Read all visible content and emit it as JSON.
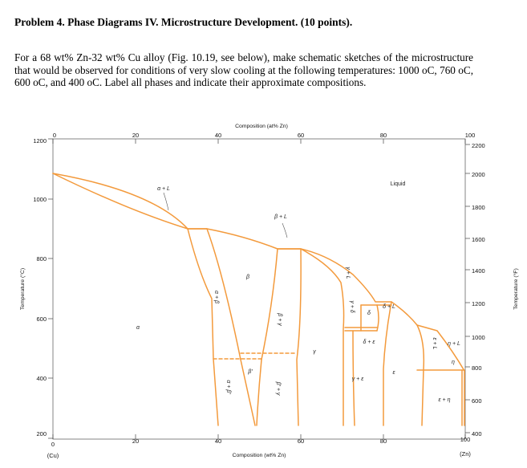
{
  "problem": {
    "title": "Problem 4. Phase Diagrams IV. Microstructure Development. (10 points).",
    "text": "For a 68 wt% Zn-32 wt% Cu alloy (Fig. 10.19, see below), make schematic sketches of the microstructure that would be observed for conditions of very slow cooling at the following temperatures: 1000 oC, 760 oC, 600 oC, and 400 oC. Label all phases and indicate their approximate compositions."
  },
  "chart_data": {
    "type": "phase-diagram",
    "x_label": "Composition (wt% Zn)",
    "top_label": "Composition (at% Zn)",
    "y_label_left": "Temperature (°C)",
    "y_label_right": "Temperature (°F)",
    "x_ticks": [
      "0",
      "20",
      "40",
      "60",
      "80",
      "100"
    ],
    "x_range": [
      0,
      100
    ],
    "x_end_labels": {
      "left": "(Cu)",
      "right": "(Zn)"
    },
    "top_ticks": [
      "0",
      "20",
      "40",
      "60",
      "80",
      "100"
    ],
    "y_ticks_c": [
      "200",
      "400",
      "600",
      "800",
      "1000",
      "1200"
    ],
    "y_range_c": [
      200,
      1200
    ],
    "y_ticks_f": [
      "400",
      "600",
      "800",
      "1000",
      "1200",
      "1400",
      "1600",
      "1800",
      "2000",
      "2200"
    ],
    "phase_labels": {
      "alpha": "α",
      "alpha_l": "α + L",
      "beta": "β",
      "beta_l": "β + L",
      "alpha_beta": "α + β",
      "alpha_betap": "α + β′",
      "beta_gamma": "β + γ",
      "betap": "β′",
      "betap_gamma": "β′ + γ",
      "gamma": "γ",
      "gamma_l": "γ + L",
      "gamma_delta": "γ + δ",
      "delta": "δ",
      "delta_l": "δ + L",
      "delta_eps": "δ + ε",
      "gamma_eps": "γ + ε",
      "eps": "ε",
      "eps_l": "ε + L",
      "eta_l": "η + L",
      "eta": "η",
      "eps_eta": "ε + η",
      "liquid": "Liquid"
    },
    "colors": {
      "phase_line": "#f39a3c",
      "axis": "#444444",
      "grid": "#d0d0d0"
    }
  }
}
